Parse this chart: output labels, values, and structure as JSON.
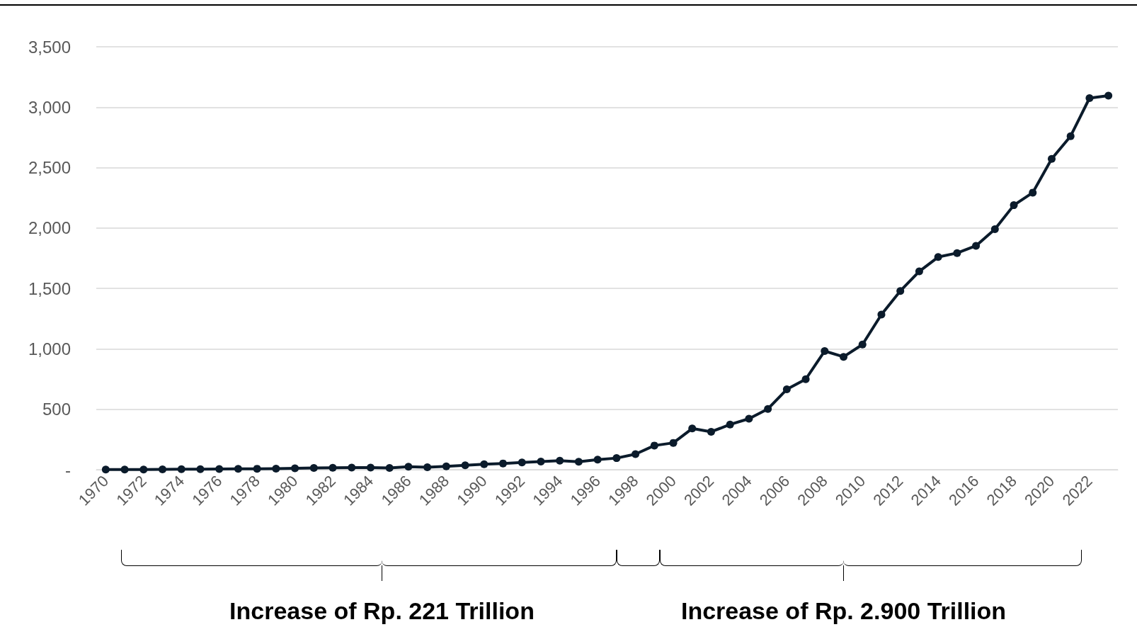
{
  "chart_data": {
    "type": "line",
    "categories": [
      "1970",
      null,
      "1972",
      null,
      "1974",
      null,
      "1976",
      null,
      "1978",
      null,
      "1980",
      null,
      "1982",
      null,
      "1984",
      null,
      "1986",
      null,
      "1988",
      null,
      "1990",
      null,
      "1992",
      null,
      "1994",
      null,
      "1996",
      null,
      "1998",
      null,
      "2000",
      null,
      "2002",
      null,
      "2004",
      null,
      "2006",
      null,
      "2008",
      null,
      "2010",
      null,
      "2012",
      null,
      "2014",
      null,
      "2016",
      null,
      "2018",
      null,
      "2020",
      null,
      "2022",
      null
    ],
    "series": [
      {
        "color": "#0b1b2b",
        "values": [
          1,
          2,
          2,
          3,
          4,
          5,
          6,
          7,
          8,
          9,
          12,
          15,
          16,
          17,
          18,
          15,
          25,
          20,
          28,
          37,
          45,
          52,
          60,
          68,
          75,
          66,
          84,
          96,
          129,
          200,
          222,
          341,
          314,
          374,
          422,
          503,
          665,
          749,
          982,
          934,
          1036,
          1284,
          1479,
          1641,
          1760,
          1793,
          1853,
          1991,
          2189,
          2293,
          2572,
          2760,
          3075,
          3096
        ]
      }
    ],
    "ylim": [
      0,
      3500
    ],
    "yticks": [
      {
        "value": 0,
        "label": "-"
      },
      {
        "value": 500,
        "label": "500"
      },
      {
        "value": 1000,
        "label": "1,000"
      },
      {
        "value": 1500,
        "label": "1,500"
      },
      {
        "value": 2000,
        "label": "2,000"
      },
      {
        "value": 2500,
        "label": "2,500"
      },
      {
        "value": 3000,
        "label": "3,000"
      },
      {
        "value": 3500,
        "label": "3,500"
      }
    ],
    "grid": "y",
    "marker": "circle",
    "line_style": "solid",
    "annotations": [
      "Increase of Rp. 221 Trillion",
      "Increase of Rp. 2.900 Trillion"
    ]
  }
}
